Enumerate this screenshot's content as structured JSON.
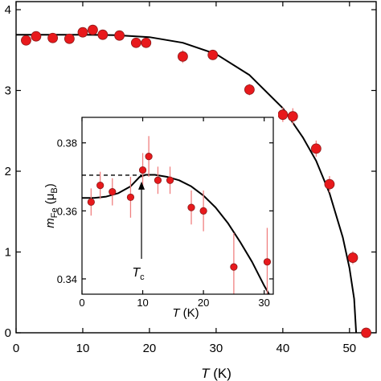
{
  "chart_data": [
    {
      "id": "main",
      "type": "scatter",
      "title": "",
      "xlabel": {
        "italic": "T",
        "rest": " (K)"
      },
      "ylabel": "",
      "xlim": [
        0,
        54
      ],
      "ylim": [
        0,
        4.1
      ],
      "xticks": [
        0,
        10,
        20,
        30,
        40,
        50
      ],
      "yticks": [
        0,
        1,
        2,
        3,
        4
      ],
      "marker_color": "#e8191c",
      "errorbar_color": "#f08080",
      "series": [
        {
          "kind": "points",
          "points": [
            {
              "x": 1.5,
              "y": 3.62,
              "err": 0.05
            },
            {
              "x": 3,
              "y": 3.67,
              "err": 0.05
            },
            {
              "x": 5.5,
              "y": 3.65,
              "err": 0.05
            },
            {
              "x": 8,
              "y": 3.64,
              "err": 0.05
            },
            {
              "x": 10,
              "y": 3.72,
              "err": 0.05
            },
            {
              "x": 11.5,
              "y": 3.75,
              "err": 0.06
            },
            {
              "x": 13,
              "y": 3.69,
              "err": 0.05
            },
            {
              "x": 15.5,
              "y": 3.68,
              "err": 0.05
            },
            {
              "x": 18,
              "y": 3.59,
              "err": 0.05
            },
            {
              "x": 19.5,
              "y": 3.59,
              "err": 0.05
            },
            {
              "x": 25,
              "y": 3.42,
              "err": 0.08
            },
            {
              "x": 29.5,
              "y": 3.44,
              "err": 0.05
            },
            {
              "x": 35,
              "y": 3.01,
              "err": 0.07
            },
            {
              "x": 40,
              "y": 2.7,
              "err": 0.09
            },
            {
              "x": 41.5,
              "y": 2.68,
              "err": 0.1
            },
            {
              "x": 45,
              "y": 2.28,
              "err": 0.1
            },
            {
              "x": 47,
              "y": 1.84,
              "err": 0.1
            },
            {
              "x": 50.5,
              "y": 0.93,
              "err": 0.08
            },
            {
              "x": 52.5,
              "y": 0.0,
              "err": 0.02
            }
          ]
        },
        {
          "kind": "fit-line",
          "points": [
            {
              "x": 0,
              "y": 3.69
            },
            {
              "x": 5,
              "y": 3.69
            },
            {
              "x": 10,
              "y": 3.69
            },
            {
              "x": 15,
              "y": 3.685
            },
            {
              "x": 20,
              "y": 3.66
            },
            {
              "x": 25,
              "y": 3.59
            },
            {
              "x": 30,
              "y": 3.45
            },
            {
              "x": 35,
              "y": 3.19
            },
            {
              "x": 40,
              "y": 2.78
            },
            {
              "x": 43,
              "y": 2.42
            },
            {
              "x": 45,
              "y": 2.13
            },
            {
              "x": 47,
              "y": 1.73
            },
            {
              "x": 49,
              "y": 1.18
            },
            {
              "x": 50,
              "y": 0.8
            },
            {
              "x": 50.7,
              "y": 0.42
            },
            {
              "x": 51,
              "y": 0.0
            }
          ]
        }
      ]
    },
    {
      "id": "inset",
      "type": "scatter",
      "title": "",
      "xlabel": {
        "italic": "T",
        "rest": " (K)"
      },
      "ylabel": {
        "italic": "m",
        "sub": "Fe",
        "rest": " (μ",
        "sub2": "B",
        "end": ")"
      },
      "xlim": [
        0,
        31.5
      ],
      "ylim": [
        0.3355,
        0.3875
      ],
      "xticks": [
        0,
        10,
        20,
        30
      ],
      "yticks": [
        0.34,
        0.36,
        0.38
      ],
      "ytick_labels": [
        "0.34",
        "0.36",
        "0.38"
      ],
      "reference_level": 0.3705,
      "annotation": {
        "italic": "T",
        "sub": "c",
        "at_x": 9.8
      },
      "series": [
        {
          "kind": "points",
          "points": [
            {
              "x": 1.5,
              "y": 0.3626,
              "err": 0.004
            },
            {
              "x": 3,
              "y": 0.3675,
              "err": 0.004
            },
            {
              "x": 5,
              "y": 0.3656,
              "err": 0.004
            },
            {
              "x": 8,
              "y": 0.364,
              "err": 0.006
            },
            {
              "x": 10,
              "y": 0.372,
              "err": 0.005
            },
            {
              "x": 11,
              "y": 0.376,
              "err": 0.006
            },
            {
              "x": 12.5,
              "y": 0.369,
              "err": 0.004
            },
            {
              "x": 14.5,
              "y": 0.369,
              "err": 0.004
            },
            {
              "x": 18,
              "y": 0.361,
              "err": 0.005
            },
            {
              "x": 20,
              "y": 0.36,
              "err": 0.006
            },
            {
              "x": 25,
              "y": 0.3435,
              "err": 0.01
            },
            {
              "x": 30.5,
              "y": 0.345,
              "err": 0.01
            }
          ]
        },
        {
          "kind": "fit-line",
          "points": [
            {
              "x": 0,
              "y": 0.3638
            },
            {
              "x": 2,
              "y": 0.3638
            },
            {
              "x": 4,
              "y": 0.3642
            },
            {
              "x": 6,
              "y": 0.3652
            },
            {
              "x": 8,
              "y": 0.3672
            },
            {
              "x": 9.5,
              "y": 0.37
            },
            {
              "x": 10.5,
              "y": 0.3706
            },
            {
              "x": 12,
              "y": 0.3706
            },
            {
              "x": 14,
              "y": 0.37
            },
            {
              "x": 16,
              "y": 0.369
            },
            {
              "x": 18,
              "y": 0.3672
            },
            {
              "x": 20,
              "y": 0.3645
            },
            {
              "x": 22,
              "y": 0.361
            },
            {
              "x": 24,
              "y": 0.3565
            },
            {
              "x": 26,
              "y": 0.351
            },
            {
              "x": 28,
              "y": 0.345
            },
            {
              "x": 30,
              "y": 0.338
            },
            {
              "x": 30.8,
              "y": 0.3355
            }
          ]
        }
      ]
    }
  ]
}
